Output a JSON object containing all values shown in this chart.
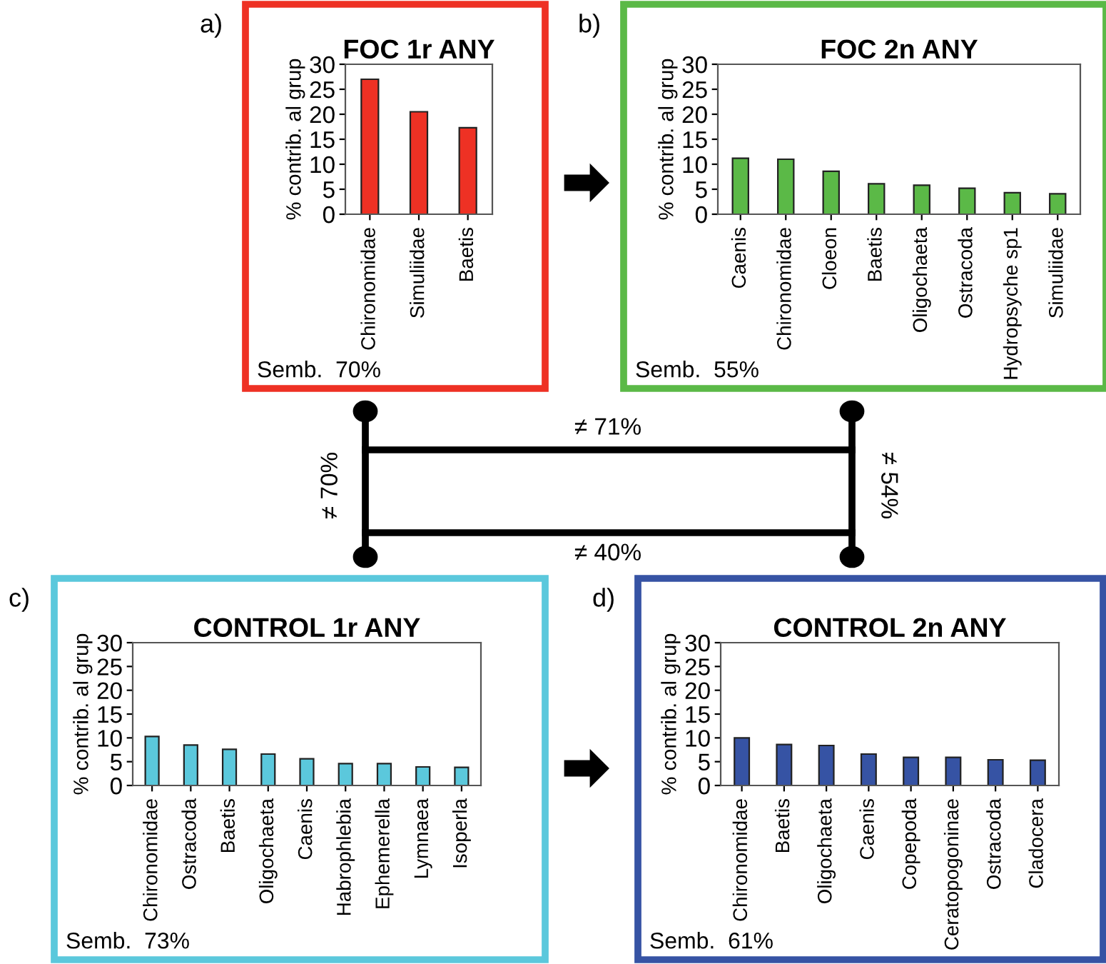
{
  "chart_data": [
    {
      "type": "bar",
      "title": "FOC 1r ANY",
      "ylabel": "% contrib. al grup",
      "categories": [
        "Chironomidae",
        "Simuliidae",
        "Baetis"
      ],
      "series": [
        {
          "color": "#ee3124",
          "values": [
            27,
            20.5,
            17.3
          ]
        }
      ],
      "ylim": [
        0,
        30
      ],
      "yticks": [
        0,
        5,
        10,
        15,
        20,
        25,
        30
      ],
      "grid": false,
      "legend": false,
      "annotations": [
        "a)",
        "Semb.  70%"
      ]
    },
    {
      "type": "bar",
      "title": "FOC 2n ANY",
      "ylabel": "% contrib. al grup",
      "categories": [
        "Caenis",
        "Chironomidae",
        "Cloeon",
        "Baetis",
        "Oligochaeta",
        "Ostracoda",
        "Hydropsyche sp1",
        "Simuliidae"
      ],
      "series": [
        {
          "color": "#5bb947",
          "values": [
            11.2,
            11,
            8.6,
            6.1,
            5.8,
            5.2,
            4.3,
            4.1
          ]
        }
      ],
      "ylim": [
        0,
        30
      ],
      "yticks": [
        0,
        5,
        10,
        15,
        20,
        25,
        30
      ],
      "grid": false,
      "legend": false,
      "annotations": [
        "b)",
        "Semb.  55%"
      ]
    },
    {
      "type": "bar",
      "title": "CONTROL 1r ANY",
      "ylabel": "% contrib. al grup",
      "categories": [
        "Chironomidae",
        "Ostracoda",
        "Baetis",
        "Oligochaeta",
        "Caenis",
        "Habrophlebia",
        "Ephemerella",
        "Lymnaea",
        "Isoperla"
      ],
      "series": [
        {
          "color": "#5bc8dc",
          "values": [
            10.3,
            8.5,
            7.6,
            6.6,
            5.6,
            4.6,
            4.6,
            3.9,
            3.8
          ]
        }
      ],
      "ylim": [
        0,
        30
      ],
      "yticks": [
        0,
        5,
        10,
        15,
        20,
        25,
        30
      ],
      "grid": false,
      "legend": false,
      "annotations": [
        "c)",
        "Semb.  73%"
      ]
    },
    {
      "type": "bar",
      "title": "CONTROL 2n ANY",
      "ylabel": "% contrib. al grup",
      "categories": [
        "Chironomidae",
        "Baetis",
        "Oligochaeta",
        "Caenis",
        "Copepoda",
        "Ceratopogoninae",
        "Ostracoda",
        "Cladocera"
      ],
      "series": [
        {
          "color": "#3653a4",
          "values": [
            10,
            8.6,
            8.4,
            6.6,
            5.9,
            5.9,
            5.4,
            5.3
          ]
        }
      ],
      "ylim": [
        0,
        30
      ],
      "yticks": [
        0,
        5,
        10,
        15,
        20,
        25,
        30
      ],
      "grid": false,
      "legend": false,
      "annotations": [
        "d)",
        "Semb.  61%"
      ]
    },
    {
      "type": "other",
      "annotations": [
        "≠ 71%",
        "≠ 70%",
        "≠ 54%",
        "≠ 40%"
      ]
    }
  ]
}
